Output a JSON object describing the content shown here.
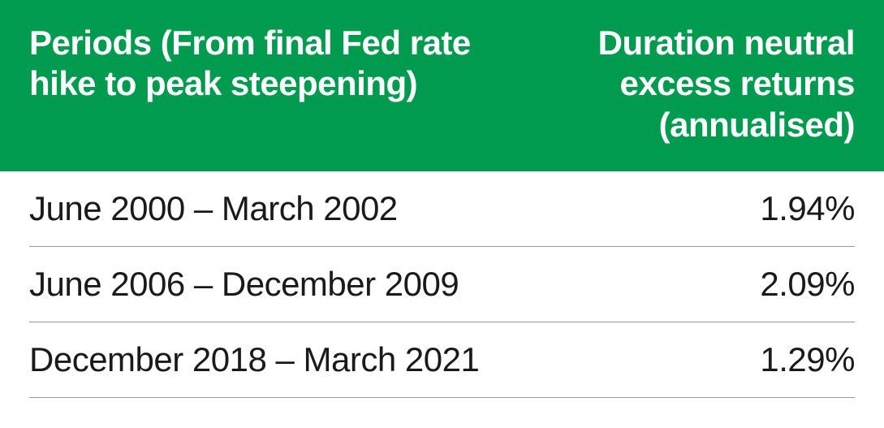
{
  "table": {
    "type": "table",
    "header_bg_color": "#009b4f",
    "header_text_color": "#ffffff",
    "body_text_color": "#1a1a1a",
    "row_border_color": "#999999",
    "font_size": 42,
    "header_font_weight": 700,
    "body_font_weight": 400,
    "columns": [
      {
        "label_line1": "Periods (From final Fed rate",
        "label_line2": "hike to peak steepening)",
        "align": "left"
      },
      {
        "label_line1": "Duration neutral",
        "label_line2": "excess returns",
        "label_line3": "(annualised)",
        "align": "right"
      }
    ],
    "rows": [
      {
        "period": "June 2000 – March 2002",
        "value": "1.94%"
      },
      {
        "period": "June 2006 – December 2009",
        "value": "2.09%"
      },
      {
        "period": "December 2018 – March 2021",
        "value": "1.29%"
      }
    ]
  }
}
